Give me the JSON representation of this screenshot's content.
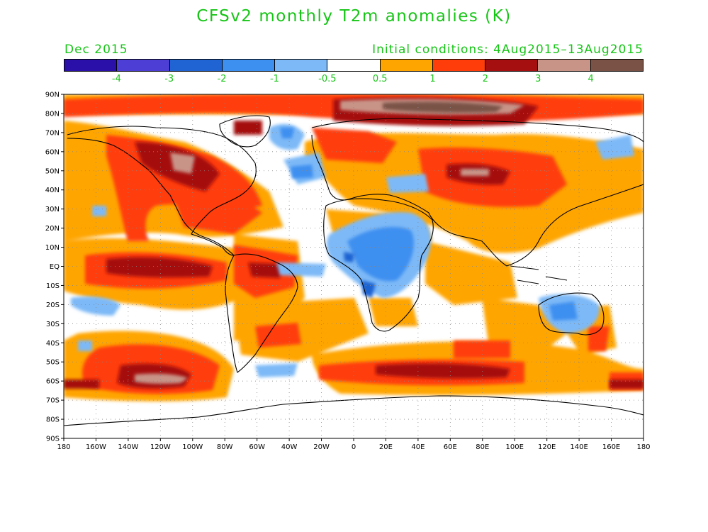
{
  "title": "CFSv2 monthly T2m anomalies (K)",
  "valid_month": "Dec 2015",
  "initial_conditions": "Initial conditions: 4Aug2015–13Aug2015",
  "colorbar": {
    "colors": [
      "#2a0fa8",
      "#4d3fd6",
      "#1f64d2",
      "#3d8ff0",
      "#7db9f7",
      "#ffffff",
      "#ffa500",
      "#ff3d0a",
      "#a50f0f",
      "#c99488",
      "#7a5246"
    ],
    "labels": [
      "-4",
      "-3",
      "-2",
      "-1",
      "-0.5",
      "0.5",
      "1",
      "2",
      "3",
      "4"
    ]
  },
  "lat_labels": [
    "90N",
    "80N",
    "70N",
    "60N",
    "50N",
    "40N",
    "30N",
    "20N",
    "10N",
    "EQ",
    "10S",
    "20S",
    "30S",
    "40S",
    "50S",
    "60S",
    "70S",
    "80S",
    "90S"
  ],
  "lon_labels": [
    "180",
    "160W",
    "140W",
    "120W",
    "100W",
    "80W",
    "60W",
    "40W",
    "20W",
    "0",
    "20E",
    "40E",
    "60E",
    "80E",
    "100E",
    "120E",
    "140E",
    "160E",
    "180"
  ]
}
